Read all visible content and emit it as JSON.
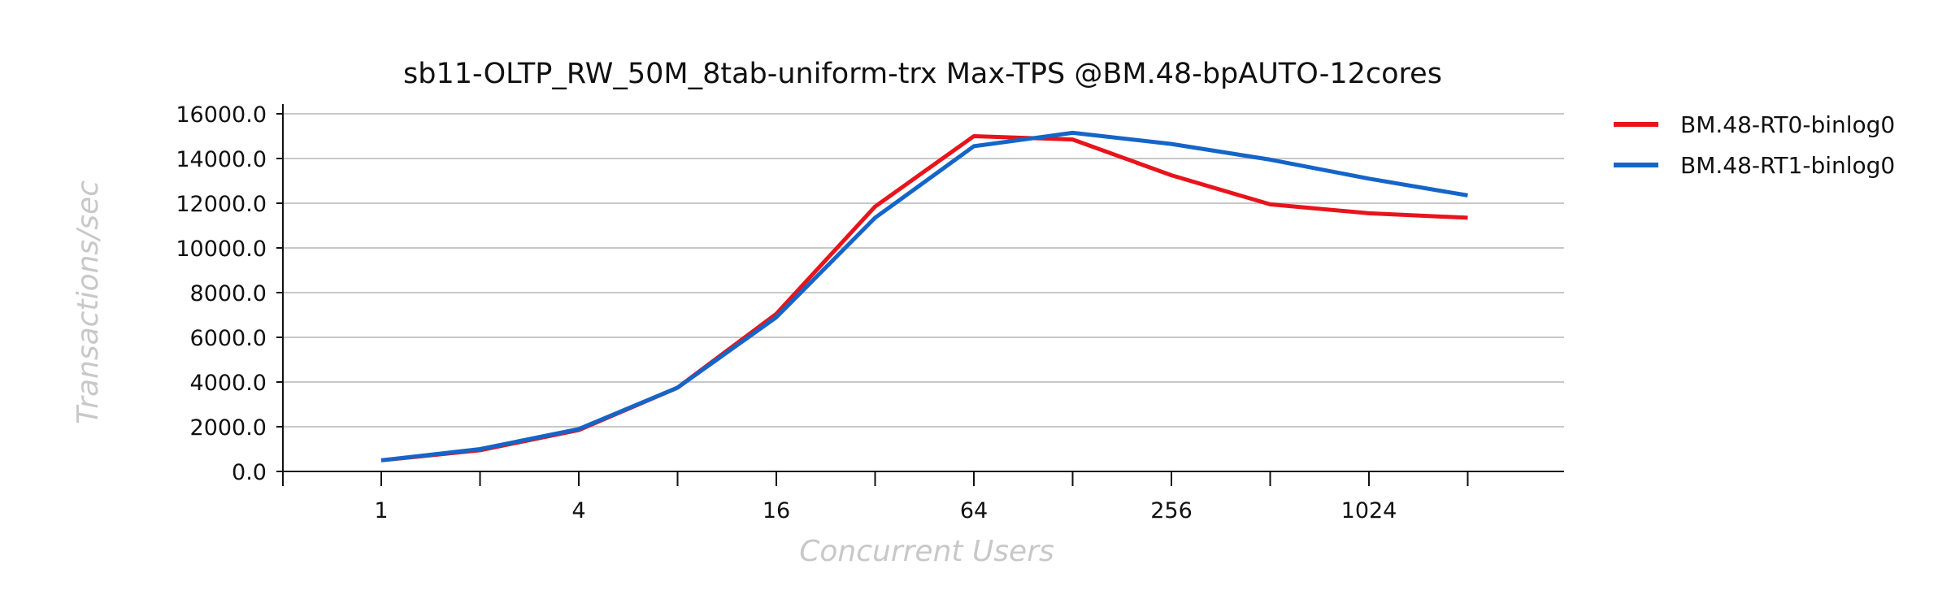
{
  "chart_data": {
    "type": "line",
    "title": "sb11-OLTP_RW_50M_8tab-uniform-trx Max-TPS @BM.48-bpAUTO-12cores",
    "xlabel": "Concurrent Users",
    "ylabel": "Transactions/sec",
    "x_scale": "log2",
    "x": [
      1,
      2,
      4,
      8,
      16,
      32,
      64,
      128,
      256,
      512,
      1024,
      2048
    ],
    "x_tick_labels": [
      "1",
      "4",
      "16",
      "64",
      "256",
      "1024"
    ],
    "x_tick_values": [
      1,
      4,
      16,
      64,
      256,
      1024
    ],
    "ylim": [
      0,
      16000
    ],
    "y_ticks": [
      "0.0",
      "2000.0",
      "4000.0",
      "6000.0",
      "8000.0",
      "10000.0",
      "12000.0",
      "14000.0",
      "16000.0"
    ],
    "grid": true,
    "legend_position": "right",
    "series": [
      {
        "name": "BM.48-RT0-binlog0",
        "color": "#e8141c",
        "values": [
          500,
          950,
          1850,
          3750,
          7050,
          11850,
          15000,
          14850,
          13250,
          11950,
          11550,
          11350
        ]
      },
      {
        "name": "BM.48-RT1-binlog0",
        "color": "#1565c8",
        "values": [
          500,
          1000,
          1900,
          3750,
          6900,
          11350,
          14550,
          15150,
          14650,
          13950,
          13100,
          12350
        ]
      }
    ]
  }
}
